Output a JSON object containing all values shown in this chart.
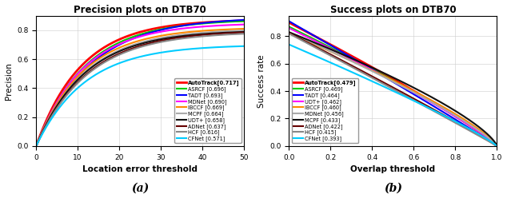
{
  "title_left": "Precision plots on DTB70",
  "title_right": "Success plots on DTB70",
  "xlabel_left": "Location error threshold",
  "xlabel_right": "Overlap threshold",
  "ylabel_left": "Precision",
  "ylabel_right": "Success rate",
  "label_a": "(a)",
  "label_b": "(b)",
  "precision_legend": [
    {
      "name": "AutoTrack[0.717]",
      "color": "#FF0000",
      "lw": 2.0
    },
    {
      "name": "ASRCF [0.696]",
      "color": "#00CC00",
      "lw": 1.5
    },
    {
      "name": "TADT [0.693]",
      "color": "#0000FF",
      "lw": 1.5
    },
    {
      "name": "MDNet [0.690]",
      "color": "#FF00FF",
      "lw": 1.5
    },
    {
      "name": "IBCCF [0.669]",
      "color": "#FF8800",
      "lw": 1.5
    },
    {
      "name": "MCPF [0.664]",
      "color": "#AAAAAA",
      "lw": 1.5
    },
    {
      "name": "UDT+ [0.658]",
      "color": "#111111",
      "lw": 1.5
    },
    {
      "name": "ADNet [0.637]",
      "color": "#660000",
      "lw": 1.5
    },
    {
      "name": "HCF [0.616]",
      "color": "#888888",
      "lw": 1.5
    },
    {
      "name": "CFNet [0.571]",
      "color": "#00CCFF",
      "lw": 1.5
    }
  ],
  "success_legend": [
    {
      "name": "AutoTrack[0.479]",
      "color": "#FF0000",
      "lw": 2.0
    },
    {
      "name": "ASRCF [0.469]",
      "color": "#00CC00",
      "lw": 1.5
    },
    {
      "name": "TADT [0.464]",
      "color": "#0000FF",
      "lw": 1.5
    },
    {
      "name": "UDT+ [0.462]",
      "color": "#FF00FF",
      "lw": 1.5
    },
    {
      "name": "IBCCF [0.460]",
      "color": "#FF8800",
      "lw": 1.5
    },
    {
      "name": "MDNet [0.456]",
      "color": "#AAAAAA",
      "lw": 1.5
    },
    {
      "name": "MCPF [0.433]",
      "color": "#111111",
      "lw": 1.5
    },
    {
      "name": "ADNet [0.422]",
      "color": "#660000",
      "lw": 1.5
    },
    {
      "name": "HCF [0.415]",
      "color": "#888888",
      "lw": 1.5
    },
    {
      "name": "CFNet [0.393]",
      "color": "#00CCFF",
      "lw": 1.5
    }
  ],
  "precision_end_vals": [
    0.875,
    0.875,
    0.89,
    0.85,
    0.82,
    0.81,
    0.8,
    0.8,
    0.79,
    0.7
  ],
  "precision_k": [
    0.092,
    0.085,
    0.077,
    0.088,
    0.088,
    0.085,
    0.085,
    0.08,
    0.08,
    0.085
  ],
  "success_init_y": [
    0.9,
    0.87,
    0.91,
    0.86,
    0.82,
    0.83,
    0.83,
    0.825,
    0.82,
    0.74
  ],
  "success_alpha": [
    0.88,
    0.86,
    0.96,
    0.86,
    0.78,
    0.82,
    0.73,
    0.95,
    0.98,
    0.88
  ],
  "ylim_left": [
    0,
    0.9
  ],
  "ylim_right": [
    0,
    0.95
  ],
  "xlim_left": [
    0,
    50
  ],
  "xlim_right": [
    0,
    1
  ]
}
